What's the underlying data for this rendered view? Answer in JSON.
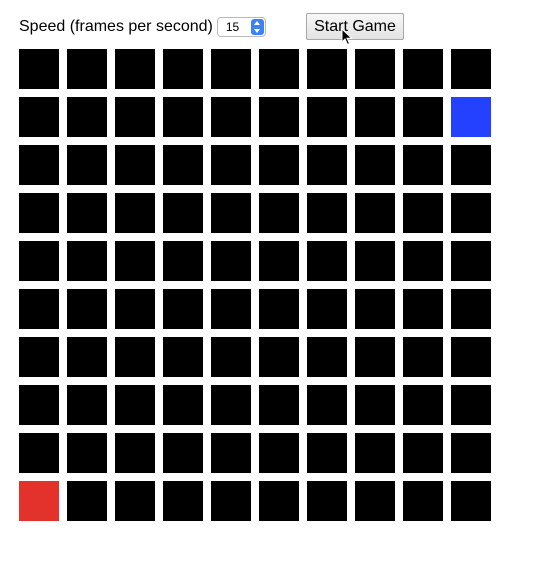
{
  "controls": {
    "speed_label": "Speed (frames per second)",
    "speed_value": "15",
    "start_label": "Start Game"
  },
  "board": {
    "rows": 10,
    "cols": 10,
    "colors": {
      "empty": "#000000",
      "player": "#2341ff",
      "target": "#e3322c"
    },
    "special_cells": [
      {
        "row": 2,
        "col": 10,
        "type": "player"
      },
      {
        "row": 10,
        "col": 1,
        "type": "target"
      }
    ]
  }
}
